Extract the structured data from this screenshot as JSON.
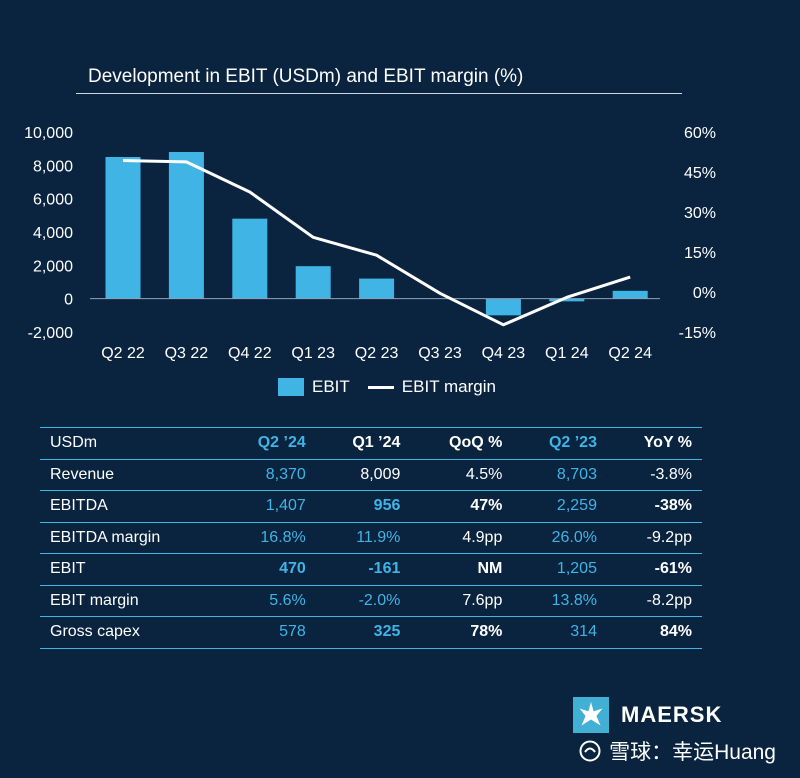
{
  "chart_data": {
    "type": "bar",
    "title": "Development in EBIT (USDm) and EBIT margin (%)",
    "categories": [
      "Q2 22",
      "Q3 22",
      "Q4 22",
      "Q1 23",
      "Q2 23",
      "Q3 23",
      "Q4 23",
      "Q1 24",
      "Q2 24"
    ],
    "series": [
      {
        "name": "EBIT",
        "kind": "bar",
        "axis": "left",
        "color": "#3fb4e5",
        "values": [
          8500,
          8800,
          4800,
          1950,
          1205,
          0,
          -1000,
          -161,
          470
        ]
      },
      {
        "name": "EBIT margin",
        "kind": "line",
        "axis": "right",
        "color": "#ffffff",
        "values": [
          49.3,
          48.8,
          37.5,
          20.5,
          13.8,
          -0.5,
          -12.3,
          -2.0,
          5.6
        ]
      }
    ],
    "left_axis": {
      "min": -2000,
      "max": 10000,
      "ticks": [
        "10,000",
        "8,000",
        "6,000",
        "4,000",
        "2,000",
        "0",
        "-2,000"
      ],
      "tick_values": [
        10000,
        8000,
        6000,
        4000,
        2000,
        0,
        -2000
      ]
    },
    "right_axis": {
      "min": -15,
      "max": 60,
      "ticks": [
        "60%",
        "45%",
        "30%",
        "15%",
        "0%",
        "-15%"
      ],
      "tick_values": [
        60,
        45,
        30,
        15,
        0,
        -15
      ]
    },
    "legend": {
      "placement": "bottom",
      "bar_label": "EBIT",
      "line_label": "EBIT margin"
    },
    "grid": false
  },
  "table": {
    "headers": [
      "USDm",
      "Q2 ’24",
      "Q1 ’24",
      "QoQ %",
      "Q2 ’23",
      "YoY %"
    ],
    "rows": [
      {
        "label": "Revenue",
        "q2_24": "8,370",
        "q1_24": "8,009",
        "qoq": "4.5%",
        "q2_23": "8,703",
        "yoy": "-3.8%"
      },
      {
        "label": "EBITDA",
        "q2_24": "1,407",
        "q1_24": "956",
        "qoq": "47%",
        "q2_23": "2,259",
        "yoy": "-38%"
      },
      {
        "label": "EBITDA margin",
        "q2_24": "16.8%",
        "q1_24": "11.9%",
        "qoq": "4.9pp",
        "q2_23": "26.0%",
        "yoy": "-9.2pp"
      },
      {
        "label": "EBIT",
        "q2_24": "470",
        "q1_24": "-161",
        "qoq": "NM",
        "q2_23": "1,205",
        "yoy": "-61%"
      },
      {
        "label": "EBIT margin",
        "q2_24": "5.6%",
        "q1_24": "-2.0%",
        "qoq": "7.6pp",
        "q2_23": "13.8%",
        "yoy": "-8.2pp"
      },
      {
        "label": "Gross capex",
        "q2_24": "578",
        "q1_24": "325",
        "qoq": "78%",
        "q2_23": "314",
        "yoy": "84%"
      }
    ]
  },
  "brand": {
    "name": "MAERSK",
    "color": "#42b0d5",
    "icon": "star-icon"
  },
  "watermark": {
    "text": "雪球：幸运Huang",
    "icon": "snowball-icon"
  },
  "colors": {
    "background": "#0a2440",
    "accent": "#3fb4e5",
    "text": "#ffffff"
  }
}
